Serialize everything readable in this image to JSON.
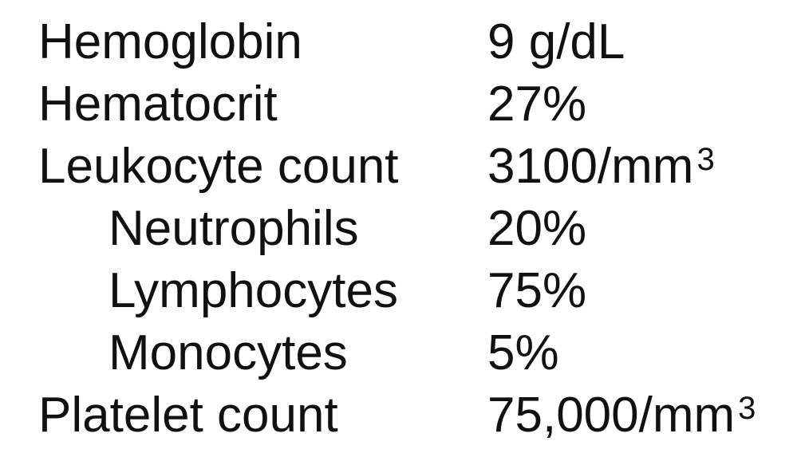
{
  "lab_results": [
    {
      "label": "Hemoglobin",
      "value": "9 g/dL",
      "superscript": ""
    },
    {
      "label": "Hematocrit",
      "value": "27%",
      "superscript": ""
    },
    {
      "label": "Leukocyte count",
      "value": "3100/mm",
      "superscript": "3"
    },
    {
      "label": "Neutrophils",
      "value": "20%",
      "superscript": ""
    },
    {
      "label": "Lymphocytes",
      "value": "75%",
      "superscript": ""
    },
    {
      "label": "Monocytes",
      "value": "5%",
      "superscript": ""
    },
    {
      "label": "Platelet count",
      "value": "75,000/mm",
      "superscript": "3"
    }
  ]
}
